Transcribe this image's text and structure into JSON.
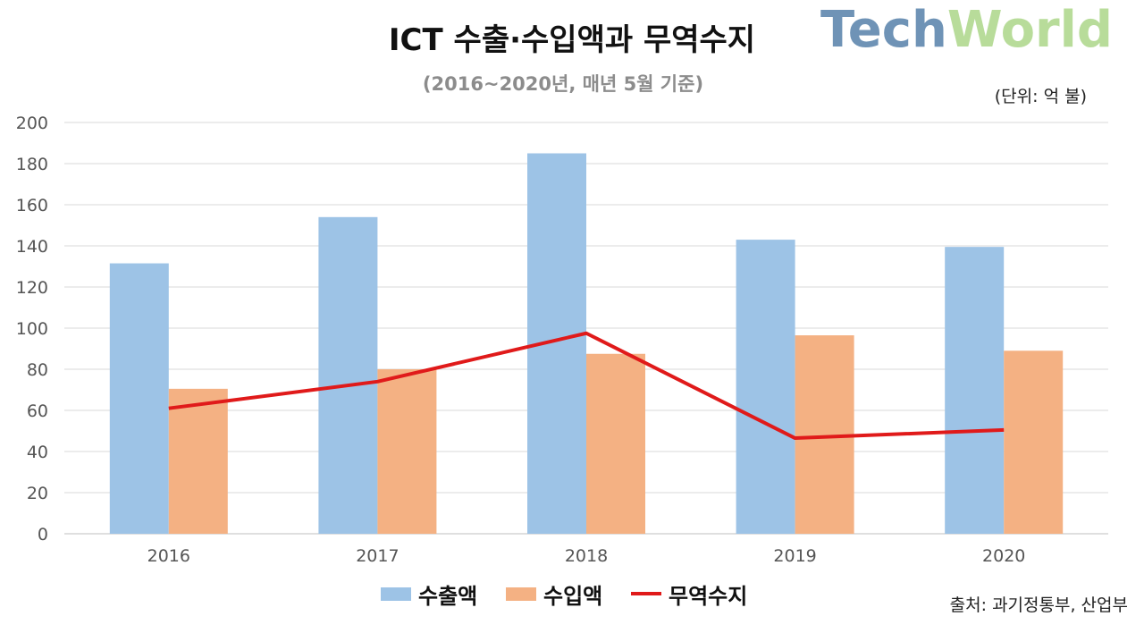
{
  "logo": {
    "part1": "Tech",
    "part2": "World"
  },
  "chart_data": {
    "type": "bar",
    "title": "ICT 수출·수입액과 무역수지",
    "subtitle": "(2016~2020년, 매년 5월 기준)",
    "unit": "(단위: 억 불)",
    "source": "출처: 과기정통부, 산업부",
    "categories": [
      "2016",
      "2017",
      "2018",
      "2019",
      "2020"
    ],
    "ylim": [
      0,
      200
    ],
    "yticks": [
      0,
      20,
      40,
      60,
      80,
      100,
      120,
      140,
      160,
      180,
      200
    ],
    "grid": true,
    "legend_position": "bottom",
    "series": [
      {
        "name": "수출액",
        "type": "bar",
        "color": "#9dc3e6",
        "values": [
          131.5,
          154,
          185,
          143,
          139.5
        ]
      },
      {
        "name": "수입액",
        "type": "bar",
        "color": "#f4b183",
        "values": [
          70.5,
          80,
          87.5,
          96.5,
          89
        ]
      },
      {
        "name": "무역수지",
        "type": "line",
        "color": "#e01a1a",
        "values": [
          61,
          74,
          97.5,
          46.5,
          50.5
        ]
      }
    ]
  }
}
